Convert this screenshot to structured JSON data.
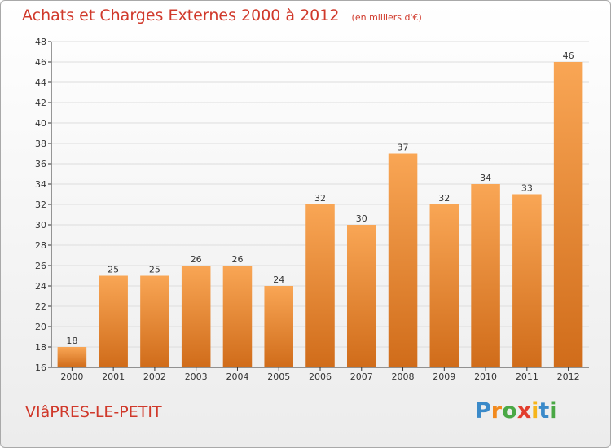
{
  "colors": {
    "title": "#d0392b",
    "bar_top": "#f9a655",
    "bar_bottom": "#d06c1a",
    "grid": "#dddddd",
    "axis": "#333333"
  },
  "footer": {
    "commune": "VIâPRES-LE-PETIT",
    "logo_letters": [
      {
        "ch": "P",
        "color": "#3b8ac9"
      },
      {
        "ch": "r",
        "color": "#f28a1e"
      },
      {
        "ch": "o",
        "color": "#4aa845"
      },
      {
        "ch": "x",
        "color": "#e23e2e"
      },
      {
        "ch": "i",
        "color": "#f6b51b"
      },
      {
        "ch": "t",
        "color": "#3b8ac9"
      },
      {
        "ch": "i",
        "color": "#4aa845"
      }
    ]
  },
  "chart_data": {
    "type": "bar",
    "title": "Achats et Charges Externes 2000 à 2012",
    "unit_label": "(en milliers d'€)",
    "categories": [
      "2000",
      "2001",
      "2002",
      "2003",
      "2004",
      "2005",
      "2006",
      "2007",
      "2008",
      "2009",
      "2010",
      "2011",
      "2012"
    ],
    "values": [
      18,
      25,
      25,
      26,
      26,
      24,
      32,
      30,
      37,
      32,
      34,
      33,
      46
    ],
    "data_labels": [
      "18",
      "25",
      "25",
      "26",
      "26",
      "24",
      "32",
      "30",
      "37",
      "32",
      "34",
      "33",
      "46"
    ],
    "ylim": [
      16,
      48
    ],
    "yticks": [
      16,
      18,
      20,
      22,
      24,
      26,
      28,
      30,
      32,
      34,
      36,
      38,
      40,
      42,
      44,
      46,
      48
    ],
    "grid": true,
    "xlabel": "",
    "ylabel": ""
  }
}
